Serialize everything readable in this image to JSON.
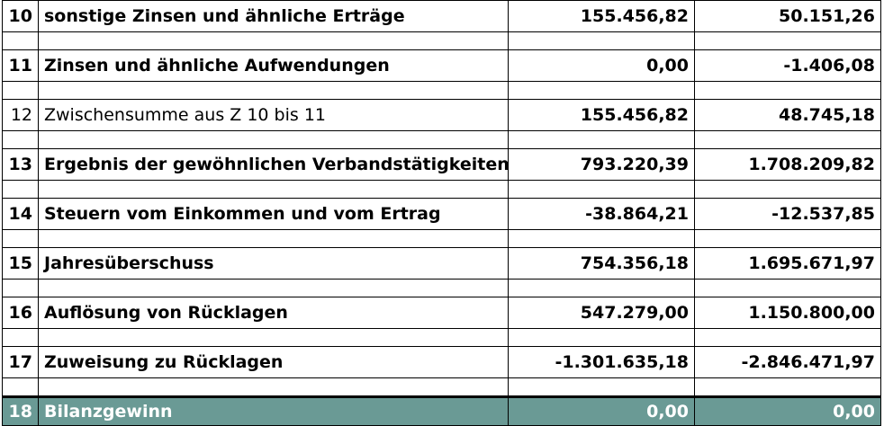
{
  "colors": {
    "positive_value": "#6f9a95",
    "negative_value": "#7a1c2a",
    "total_row_background": "#6a9a95",
    "total_row_text": "#ffffff"
  },
  "rows": [
    {
      "num": "10",
      "label": "sonstige Zinsen und ähnliche Erträge",
      "v1": "155.456,82",
      "v2": "50.151,26"
    },
    {
      "num": "11",
      "label": "Zinsen und ähnliche Aufwendungen",
      "v1": "0,00",
      "v2": "-1.406,08"
    },
    {
      "num": "12",
      "label": "Zwischensumme aus Z 10 bis 11",
      "v1": "155.456,82",
      "v2": "48.745,18"
    },
    {
      "num": "13",
      "label": "Ergebnis der gewöhnlichen Verbandstätigkeiten",
      "v1": "793.220,39",
      "v2": "1.708.209,82"
    },
    {
      "num": "14",
      "label": "Steuern vom Einkommen und vom Ertrag",
      "v1": "-38.864,21",
      "v2": "-12.537,85"
    },
    {
      "num": "15",
      "label": "Jahresüberschuss",
      "v1": "754.356,18",
      "v2": "1.695.671,97"
    },
    {
      "num": "16",
      "label": "Auflösung von Rücklagen",
      "v1": "547.279,00",
      "v2": "1.150.800,00"
    },
    {
      "num": "17",
      "label": "Zuweisung zu Rücklagen",
      "v1": "-1.301.635,18",
      "v2": "-2.846.471,97"
    },
    {
      "num": "18",
      "label": "Bilanzgewinn",
      "v1": "0,00",
      "v2": "0,00"
    }
  ]
}
